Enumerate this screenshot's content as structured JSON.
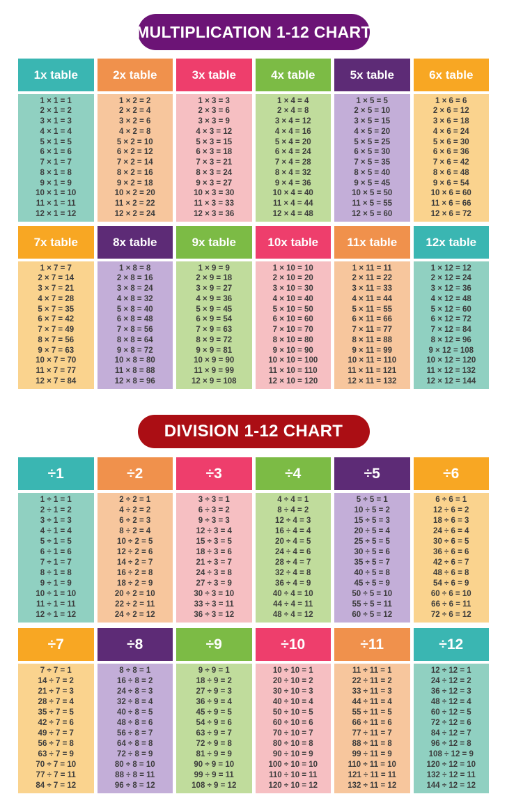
{
  "page": {
    "background": "#ffffff",
    "body_text_color": "#3c3c3c"
  },
  "palette": {
    "teal": {
      "header": "#3ab6b2",
      "body": "#90d0c1"
    },
    "orange": {
      "header": "#f0914c",
      "body": "#f7c69d"
    },
    "pink": {
      "header": "#ee3e6c",
      "body": "#f6bfc2"
    },
    "green": {
      "header": "#7cbb45",
      "body": "#c0dc9c"
    },
    "purple": {
      "header": "#5d2b76",
      "body": "#c3aed8"
    },
    "amber": {
      "header": "#f8a723",
      "body": "#fad38e"
    }
  },
  "multiplication": {
    "title": "MULTIPLICATION 1-12 CHART",
    "title_bg": "#6c1476",
    "tables": [
      {
        "label": "1x table",
        "color": "teal",
        "rows": [
          "1 × 1 = 1",
          "2 × 1 = 2",
          "3 × 1 = 3",
          "4 × 1 = 4",
          "5 × 1 = 5",
          "6 × 1 = 6",
          "7 × 1 = 7",
          "8 × 1 = 8",
          "9 × 1 = 9",
          "10 × 1 = 10",
          "11 × 1 = 11",
          "12 × 1 = 12"
        ]
      },
      {
        "label": "2x table",
        "color": "orange",
        "rows": [
          "1 × 2 = 2",
          "2 × 2 = 4",
          "3 × 2 = 6",
          "4 × 2 = 8",
          "5 × 2 = 10",
          "6 × 2 = 12",
          "7 × 2 = 14",
          "8 × 2 = 16",
          "9 × 2 = 18",
          "10 × 2 = 20",
          "11 × 2 = 22",
          "12 × 2 = 24"
        ]
      },
      {
        "label": "3x table",
        "color": "pink",
        "rows": [
          "1 × 3 = 3",
          "2 × 3 = 6",
          "3 × 3 = 9",
          "4 × 3 = 12",
          "5 × 3 = 15",
          "6 × 3 = 18",
          "7 × 3 = 21",
          "8 × 3 = 24",
          "9 × 3 = 27",
          "10 × 3 = 30",
          "11 × 3 = 33",
          "12 × 3 = 36"
        ]
      },
      {
        "label": "4x table",
        "color": "green",
        "rows": [
          "1 × 4 = 4",
          "2 × 4 = 8",
          "3 × 4 = 12",
          "4 × 4 = 16",
          "5 × 4 = 20",
          "6 × 4 = 24",
          "7 × 4 = 28",
          "8 × 4 = 32",
          "9 × 4 = 36",
          "10 × 4 = 40",
          "11 × 4 = 44",
          "12 × 4 = 48"
        ]
      },
      {
        "label": "5x table",
        "color": "purple",
        "rows": [
          "1 × 5 = 5",
          "2 × 5 = 10",
          "3 × 5 = 15",
          "4 × 5 = 20",
          "5 × 5 = 25",
          "6 × 5 = 30",
          "7 × 5 = 35",
          "8 × 5 = 40",
          "9 × 5 = 45",
          "10 × 5 = 50",
          "11 × 5 = 55",
          "12 × 5 = 60"
        ]
      },
      {
        "label": "6x table",
        "color": "amber",
        "rows": [
          "1 × 6 = 6",
          "2 × 6 = 12",
          "3 × 6 = 18",
          "4 × 6 = 24",
          "5 × 6 = 30",
          "6 × 6 = 36",
          "7 × 6 = 42",
          "8 × 6 = 48",
          "9 × 6 = 54",
          "10 × 6 = 60",
          "11 × 6 = 66",
          "12 × 6 = 72"
        ]
      },
      {
        "label": "7x table",
        "color": "amber",
        "rows": [
          "1 × 7 = 7",
          "2 × 7 = 14",
          "3 × 7 = 21",
          "4 × 7 = 28",
          "5 × 7 = 35",
          "6 × 7 = 42",
          "7 × 7 = 49",
          "8 × 7 = 56",
          "9 × 7 = 63",
          "10 × 7 = 70",
          "11 × 7 = 77",
          "12 × 7 = 84"
        ]
      },
      {
        "label": "8x table",
        "color": "purple",
        "rows": [
          "1 × 8 = 8",
          "2 × 8 = 16",
          "3 × 8 = 24",
          "4 × 8 = 32",
          "5 × 8 = 40",
          "6 × 8 = 48",
          "7 × 8 = 56",
          "8 × 8 = 64",
          "9 × 8 = 72",
          "10 × 8 = 80",
          "11 × 8 = 88",
          "12 × 8 = 96"
        ]
      },
      {
        "label": "9x table",
        "color": "green",
        "rows": [
          "1 × 9 = 9",
          "2 × 9 = 18",
          "3 × 9 = 27",
          "4 × 9 = 36",
          "5 × 9 = 45",
          "6 × 9 = 54",
          "7 × 9 = 63",
          "8 × 9 = 72",
          "9 × 9 = 81",
          "10 × 9 = 90",
          "11 × 9 = 99",
          "12 × 9 = 108"
        ]
      },
      {
        "label": "10x table",
        "color": "pink",
        "rows": [
          "1 × 10 = 10",
          "2 × 10 = 20",
          "3 × 10 = 30",
          "4 × 10 = 40",
          "5 × 10 = 50",
          "6 × 10 = 60",
          "7 × 10 = 70",
          "8 × 10 = 80",
          "9 × 10 = 90",
          "10 × 10 = 100",
          "11 × 10 = 110",
          "12 × 10 = 120"
        ]
      },
      {
        "label": "11x table",
        "color": "orange",
        "rows": [
          "1 × 11 = 11",
          "2 × 11 = 22",
          "3 × 11 = 33",
          "4 × 11 = 44",
          "5 × 11 = 55",
          "6 × 11 = 66",
          "7 × 11 = 77",
          "8 × 11 = 88",
          "9 × 11 = 99",
          "10 × 11 = 110",
          "11 × 11 = 121",
          "12 × 11 = 132"
        ]
      },
      {
        "label": "12x table",
        "color": "teal",
        "rows": [
          "1 × 12 = 12",
          "2 × 12 = 24",
          "3 × 12 = 36",
          "4 × 12 = 48",
          "5 × 12 = 60",
          "6 × 12 = 72",
          "7 × 12 = 84",
          "8 × 12 = 96",
          "9 × 12 = 108",
          "10 × 12 = 120",
          "11 × 12 = 132",
          "12 × 12 = 144"
        ]
      }
    ]
  },
  "division": {
    "title": "DIVISION 1-12 CHART",
    "title_bg": "#ab0e14",
    "tables": [
      {
        "label": "÷1",
        "color": "teal",
        "rows": [
          "1 ÷ 1 = 1",
          "2 ÷ 1 = 2",
          "3 ÷ 1 = 3",
          "4 ÷ 1 = 4",
          "5 ÷ 1 = 5",
          "6 ÷ 1 = 6",
          "7 ÷ 1 = 7",
          "8 ÷ 1 = 8",
          "9 ÷ 1 = 9",
          "10 ÷ 1 = 10",
          "11 ÷ 1 = 11",
          "12 ÷ 1 = 12"
        ]
      },
      {
        "label": "÷2",
        "color": "orange",
        "rows": [
          "2 ÷ 2 = 1",
          "4 ÷ 2 = 2",
          "6 ÷ 2 = 3",
          "8 ÷ 2 = 4",
          "10 ÷ 2 = 5",
          "12 ÷ 2 = 6",
          "14 ÷ 2 = 7",
          "16 ÷ 2 = 8",
          "18 ÷ 2 = 9",
          "20 ÷ 2 = 10",
          "22 ÷ 2 = 11",
          "24 ÷ 2 = 12"
        ]
      },
      {
        "label": "÷3",
        "color": "pink",
        "rows": [
          "3 ÷ 3 = 1",
          "6 ÷ 3 = 2",
          "9 ÷ 3 = 3",
          "12 ÷ 3 = 4",
          "15 ÷ 3 = 5",
          "18 ÷ 3 = 6",
          "21 ÷ 3 = 7",
          "24 ÷ 3 = 8",
          "27 ÷ 3 = 9",
          "30 ÷ 3 = 10",
          "33 ÷ 3 = 11",
          "36 ÷ 3 = 12"
        ]
      },
      {
        "label": "÷4",
        "color": "green",
        "rows": [
          "4 ÷ 4 = 1",
          "8 ÷ 4 = 2",
          "12 ÷ 4 = 3",
          "16 ÷ 4 = 4",
          "20 ÷ 4 = 5",
          "24 ÷ 4 = 6",
          "28 ÷ 4 = 7",
          "32 ÷ 4 = 8",
          "36 ÷ 4 = 9",
          "40 ÷ 4 = 10",
          "44 ÷ 4 = 11",
          "48 ÷ 4 = 12"
        ]
      },
      {
        "label": "÷5",
        "color": "purple",
        "rows": [
          "5 ÷ 5 = 1",
          "10 ÷ 5 = 2",
          "15 ÷ 5 = 3",
          "20 ÷ 5 = 4",
          "25 ÷ 5 = 5",
          "30 ÷ 5 = 6",
          "35 ÷ 5 = 7",
          "40 ÷ 5 = 8",
          "45 ÷ 5 = 9",
          "50 ÷ 5 = 10",
          "55 ÷ 5 = 11",
          "60 ÷ 5 = 12"
        ]
      },
      {
        "label": "÷6",
        "color": "amber",
        "rows": [
          "6 ÷ 6 = 1",
          "12 ÷ 6 = 2",
          "18 ÷ 6 = 3",
          "24 ÷ 6 = 4",
          "30 ÷ 6 = 5",
          "36 ÷ 6 = 6",
          "42 ÷ 6 = 7",
          "48 ÷ 6 = 8",
          "54 ÷ 6 = 9",
          "60 ÷ 6 = 10",
          "66 ÷ 6 = 11",
          "72 ÷ 6 = 12"
        ]
      },
      {
        "label": "÷7",
        "color": "amber",
        "rows": [
          "7 ÷ 7 = 1",
          "14 ÷ 7 = 2",
          "21 ÷ 7 = 3",
          "28 ÷ 7 = 4",
          "35 ÷ 7 = 5",
          "42 ÷ 7 = 6",
          "49 ÷ 7 = 7",
          "56 ÷ 7 = 8",
          "63 ÷ 7 = 9",
          "70 ÷ 7 = 10",
          "77 ÷ 7 = 11",
          "84 ÷ 7 = 12"
        ]
      },
      {
        "label": "÷8",
        "color": "purple",
        "rows": [
          "8 ÷ 8 = 1",
          "16 ÷ 8 = 2",
          "24 ÷ 8 = 3",
          "32 ÷ 8 = 4",
          "40 ÷ 8 = 5",
          "48 ÷ 8 = 6",
          "56 ÷ 8 = 7",
          "64 ÷ 8 = 8",
          "72 ÷ 8 = 9",
          "80 ÷ 8 = 10",
          "88 ÷ 8 = 11",
          "96 ÷ 8 = 12"
        ]
      },
      {
        "label": "÷9",
        "color": "green",
        "rows": [
          "9 ÷ 9 = 1",
          "18 ÷ 9 = 2",
          "27 ÷ 9 = 3",
          "36 ÷ 9 = 4",
          "45 ÷ 9 = 5",
          "54 ÷ 9 = 6",
          "63 ÷ 9 = 7",
          "72 ÷ 9 = 8",
          "81 ÷ 9 = 9",
          "90 ÷ 9 = 10",
          "99 ÷ 9 = 11",
          "108 ÷ 9 = 12"
        ]
      },
      {
        "label": "÷10",
        "color": "pink",
        "rows": [
          "10 ÷ 10 = 1",
          "20 ÷ 10 = 2",
          "30 ÷ 10 = 3",
          "40 ÷ 10 = 4",
          "50 ÷ 10 = 5",
          "60 ÷ 10 = 6",
          "70 ÷ 10 = 7",
          "80 ÷ 10 = 8",
          "90 ÷ 10 = 9",
          "100 ÷ 10 = 10",
          "110 ÷ 10 = 11",
          "120 ÷ 10 = 12"
        ]
      },
      {
        "label": "÷11",
        "color": "orange",
        "rows": [
          "11 ÷ 11 = 1",
          "22 ÷ 11 = 2",
          "33 ÷ 11 = 3",
          "44 ÷ 11 = 4",
          "55 ÷ 11 = 5",
          "66 ÷ 11 = 6",
          "77 ÷ 11 = 7",
          "88 ÷ 11 = 8",
          "99 ÷ 11 = 9",
          "110 ÷ 11 = 10",
          "121 ÷ 11 = 11",
          "132 ÷ 11 = 12"
        ]
      },
      {
        "label": "÷12",
        "color": "teal",
        "rows": [
          "12 ÷ 12 = 1",
          "24 ÷ 12 = 2",
          "36 ÷ 12 = 3",
          "48 ÷ 12 = 4",
          "60 ÷ 12 = 5",
          "72 ÷ 12 = 6",
          "84 ÷ 12 = 7",
          "96 ÷ 12 = 8",
          "108 ÷ 12 = 9",
          "120 ÷ 12 = 10",
          "132 ÷ 12 = 11",
          "144 ÷ 12 = 12"
        ]
      }
    ]
  }
}
